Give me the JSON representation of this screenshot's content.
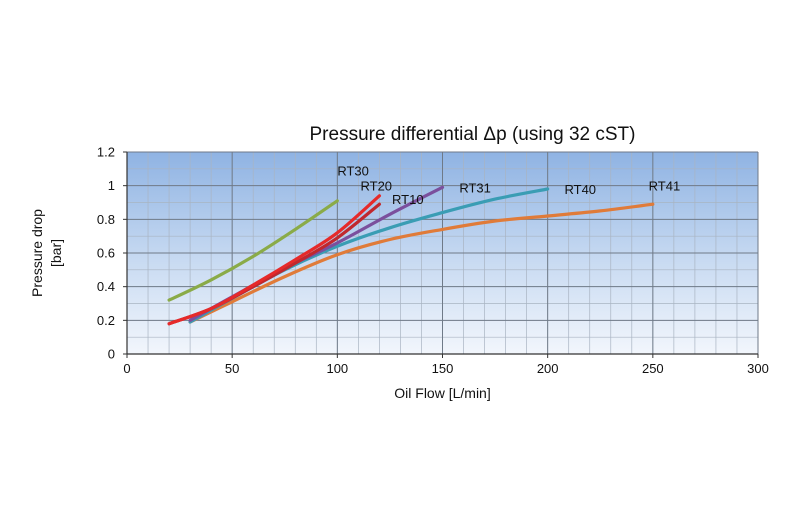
{
  "chart_data": {
    "type": "line",
    "title": "Pressure differential Δp (using 32 cST)",
    "xlabel": "Oil Flow [L/min]",
    "ylabel_lines": [
      "Pressure drop",
      "[bar]"
    ],
    "xlim": [
      0,
      300
    ],
    "ylim": [
      0,
      1.2
    ],
    "x_ticks": [
      0,
      50,
      100,
      150,
      200,
      250,
      300
    ],
    "y_ticks": [
      0,
      0.2,
      0.4,
      0.6,
      0.8,
      1,
      1.2
    ],
    "x_tick_labels": [
      "0",
      "50",
      "100",
      "150",
      "200",
      "250",
      "300"
    ],
    "y_tick_labels": [
      "0",
      "0.2",
      "0.4",
      "0.6",
      "0.8",
      "1",
      "1.2"
    ],
    "grid": true,
    "series": [
      {
        "name": "RT30",
        "color": "#8aab48",
        "x": [
          20,
          40,
          60,
          80,
          100
        ],
        "y": [
          0.32,
          0.44,
          0.58,
          0.74,
          0.91
        ]
      },
      {
        "name": "RT41",
        "color": "#e07b39",
        "x": [
          30,
          50,
          75,
          100,
          125,
          150,
          175,
          200,
          225,
          250
        ],
        "y": [
          0.19,
          0.31,
          0.46,
          0.59,
          0.68,
          0.74,
          0.79,
          0.82,
          0.85,
          0.89
        ]
      },
      {
        "name": "RT40",
        "color": "#3a9db4",
        "x": [
          30,
          50,
          75,
          100,
          125,
          150,
          175,
          200
        ],
        "y": [
          0.19,
          0.33,
          0.5,
          0.64,
          0.75,
          0.84,
          0.92,
          0.98
        ]
      },
      {
        "name": "RT31",
        "color": "#7b4f9d",
        "x": [
          30,
          50,
          75,
          100,
          125,
          150
        ],
        "y": [
          0.2,
          0.34,
          0.51,
          0.66,
          0.83,
          0.99
        ]
      },
      {
        "name": "RT10",
        "color": "#c0282e",
        "x": [
          20,
          40,
          60,
          80,
          100,
          120
        ],
        "y": [
          0.18,
          0.27,
          0.4,
          0.54,
          0.69,
          0.89
        ]
      },
      {
        "name": "RT20",
        "color": "#e62a2a",
        "x": [
          20,
          40,
          60,
          80,
          100,
          120
        ],
        "y": [
          0.18,
          0.27,
          0.41,
          0.56,
          0.72,
          0.94
        ]
      }
    ],
    "annotations": [
      {
        "text": "RT30",
        "x": 100,
        "y": 1.09
      },
      {
        "text": "RT20",
        "x": 111,
        "y": 1.0
      },
      {
        "text": "RT10",
        "x": 126,
        "y": 0.92
      },
      {
        "text": "RT31",
        "x": 158,
        "y": 0.99
      },
      {
        "text": "RT40",
        "x": 208,
        "y": 0.98
      },
      {
        "text": "RT41",
        "x": 248,
        "y": 1.0
      }
    ]
  }
}
